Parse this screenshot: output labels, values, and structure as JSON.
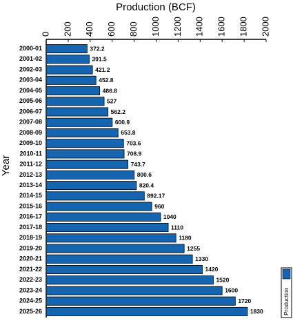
{
  "chart_data": {
    "type": "bar",
    "orientation": "horizontal",
    "x_label": "Production (BCF)",
    "y_label": "Year",
    "categories": [
      "2000-01",
      "2001-02",
      "2002-03",
      "2003-04",
      "2004-05",
      "2005-06",
      "2006-07",
      "2007-08",
      "2008-09",
      "2009-10",
      "2010-11",
      "2011-12",
      "2012-13",
      "2013-14",
      "2014-15",
      "2015-16",
      "2016-17",
      "2017-18",
      "2018-19",
      "2019-20",
      "2020-21",
      "2021-22",
      "2022-23",
      "2023-24",
      "2024-25",
      "2025-26"
    ],
    "series": [
      {
        "name": "Production",
        "color": "#1565b0",
        "values": [
          372.2,
          391.5,
          421.2,
          452.8,
          486.8,
          527,
          562.2,
          600.9,
          653.8,
          703.6,
          708.9,
          743.7,
          800.6,
          820.4,
          892.17,
          960,
          1040,
          1110,
          1180,
          1255,
          1330,
          1420,
          1520,
          1600,
          1720,
          1830
        ]
      }
    ],
    "xlim": [
      0,
      2000
    ],
    "xticks": [
      0,
      200,
      400,
      600,
      800,
      1000,
      1200,
      1400,
      1600,
      1800,
      2000
    ],
    "legend": "lower right"
  }
}
